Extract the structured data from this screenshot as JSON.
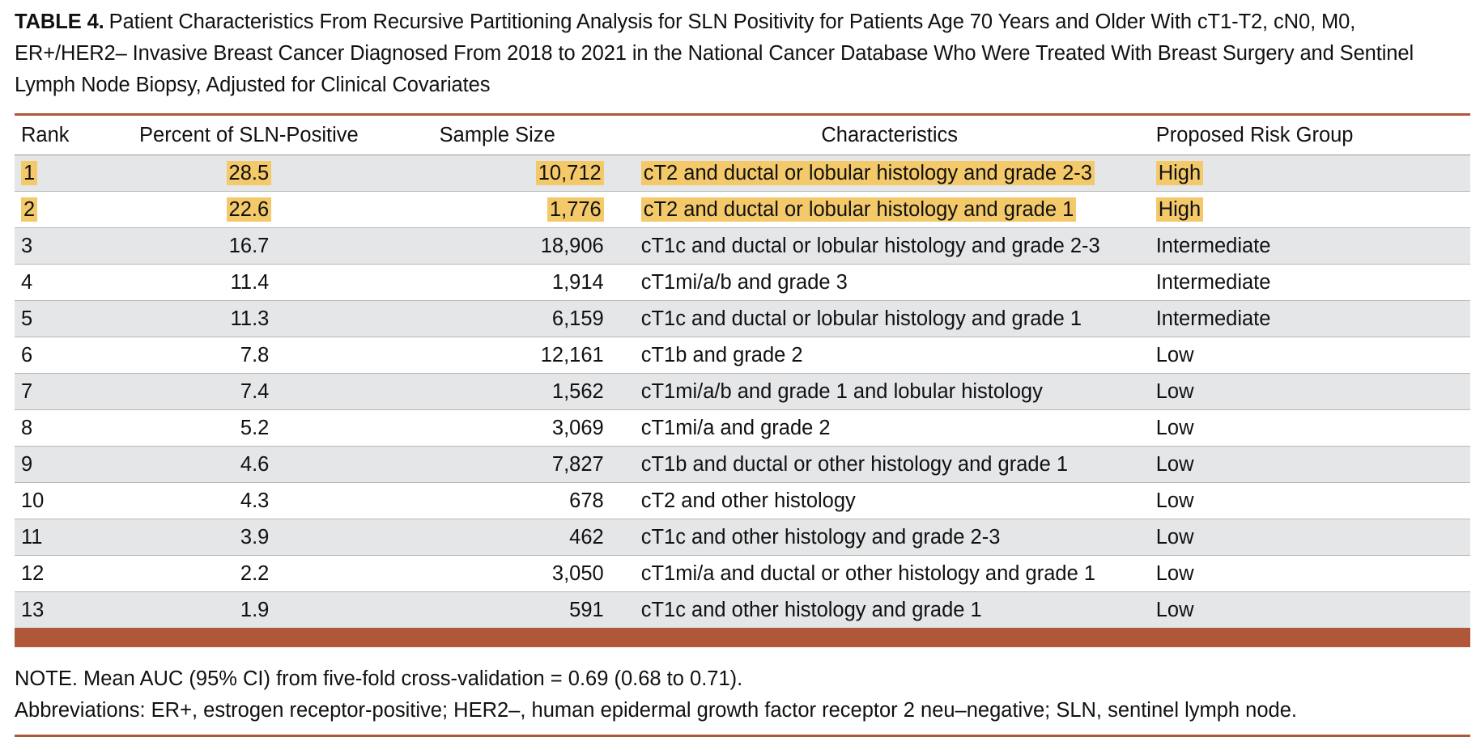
{
  "caption": {
    "label": "TABLE 4.",
    "text": "Patient Characteristics From Recursive Partitioning Analysis for SLN Positivity for Patients Age 70 Years and Older With cT1-T2, cN0, M0, ER+/HER2– Invasive Breast Cancer Diagnosed From 2018 to 2021 in the National Cancer Database Who Were Treated With Breast Surgery and Sentinel Lymph Node Biopsy, Adjusted for Clinical Covariates"
  },
  "table": {
    "headers": {
      "rank": "Rank",
      "percent": "Percent of SLN-Positive",
      "sample_size": "Sample Size",
      "characteristics": "Characteristics",
      "risk_group": "Proposed Risk Group"
    },
    "rows": [
      {
        "rank": "1",
        "percent": "28.5",
        "sample_size": "10,712",
        "characteristics": "cT2 and ductal or lobular histology and grade 2-3",
        "risk_group": "High",
        "highlighted": true
      },
      {
        "rank": "2",
        "percent": "22.6",
        "sample_size": "1,776",
        "characteristics": "cT2 and ductal or lobular histology and grade 1",
        "risk_group": "High",
        "highlighted": true
      },
      {
        "rank": "3",
        "percent": "16.7",
        "sample_size": "18,906",
        "characteristics": "cT1c and ductal or lobular histology and grade 2-3",
        "risk_group": "Intermediate",
        "highlighted": false
      },
      {
        "rank": "4",
        "percent": "11.4",
        "sample_size": "1,914",
        "characteristics": "cT1mi/a/b and grade 3",
        "risk_group": "Intermediate",
        "highlighted": false
      },
      {
        "rank": "5",
        "percent": "11.3",
        "sample_size": "6,159",
        "characteristics": "cT1c and ductal or lobular histology and grade 1",
        "risk_group": "Intermediate",
        "highlighted": false
      },
      {
        "rank": "6",
        "percent": "7.8",
        "sample_size": "12,161",
        "characteristics": "cT1b and grade 2",
        "risk_group": "Low",
        "highlighted": false
      },
      {
        "rank": "7",
        "percent": "7.4",
        "sample_size": "1,562",
        "characteristics": "cT1mi/a/b and grade 1 and lobular histology",
        "risk_group": "Low",
        "highlighted": false
      },
      {
        "rank": "8",
        "percent": "5.2",
        "sample_size": "3,069",
        "characteristics": "cT1mi/a and grade 2",
        "risk_group": "Low",
        "highlighted": false
      },
      {
        "rank": "9",
        "percent": "4.6",
        "sample_size": "7,827",
        "characteristics": "cT1b and ductal or other histology and grade 1",
        "risk_group": "Low",
        "highlighted": false
      },
      {
        "rank": "10",
        "percent": "4.3",
        "sample_size": "678",
        "characteristics": "cT2 and other histology",
        "risk_group": "Low",
        "highlighted": false
      },
      {
        "rank": "11",
        "percent": "3.9",
        "sample_size": "462",
        "characteristics": "cT1c and other histology and grade 2-3",
        "risk_group": "Low",
        "highlighted": false
      },
      {
        "rank": "12",
        "percent": "2.2",
        "sample_size": "3,050",
        "characteristics": "cT1mi/a and ductal or other histology and grade 1",
        "risk_group": "Low",
        "highlighted": false
      },
      {
        "rank": "13",
        "percent": "1.9",
        "sample_size": "591",
        "characteristics": "cT1c and other histology and grade 1",
        "risk_group": "Low",
        "highlighted": false
      }
    ]
  },
  "notes": {
    "note": "NOTE. Mean AUC (95% CI) from five-fold cross-validation = 0.69 (0.68 to 0.71).",
    "abbreviations": "Abbreviations: ER+, estrogen receptor-positive; HER2–, human epidermal growth factor receptor 2 neu–negative; SLN, sentinel lymph node."
  },
  "colors": {
    "accent_rule": "#b0573a",
    "highlight": "#f3c96a",
    "row_stripe": "#e5e6e8"
  }
}
